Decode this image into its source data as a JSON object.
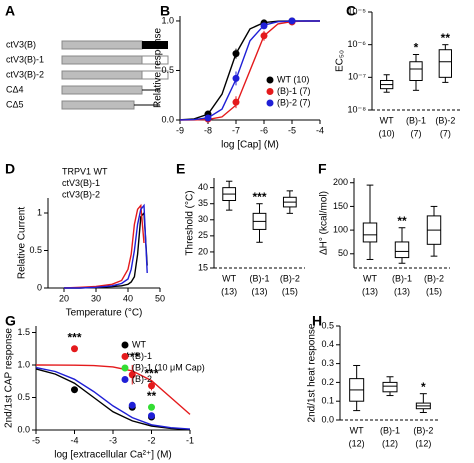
{
  "diagram": {
    "panel": "A",
    "constructs": [
      {
        "label": "ctV3(B)",
        "color": "#000000"
      },
      {
        "label": "ctV3(B)-1",
        "color": "#e41a1c"
      },
      {
        "label": "ctV3(B)-2",
        "color": "#1f1fd6"
      },
      {
        "label": "CΔ4",
        "color": "#000000"
      },
      {
        "label": "CΔ5",
        "color": "#000000"
      }
    ]
  },
  "chart_data": [
    {
      "type": "dose",
      "panel": "B",
      "xlabel": "log [Cap] (M)",
      "ylabel": "Relative response",
      "xlim": [
        -9,
        -4
      ],
      "xticks": [
        -9,
        -8,
        -7,
        -6,
        -5,
        -4
      ],
      "ylim": [
        0,
        1.05
      ],
      "yticks": [
        {
          "value": 0,
          "label": "0.0"
        },
        0.5,
        {
          "value": 1,
          "label": "1.0"
        }
      ],
      "legend": "lower-right",
      "legend_markers": true,
      "x": [
        -8,
        -7,
        -6,
        -5
      ],
      "fit_x": [
        -9,
        -8.5,
        -8,
        -7.5,
        -7,
        -6.5,
        -6,
        -5.5,
        -5,
        -4.5,
        -4
      ],
      "series": [
        {
          "name": "WT (10)",
          "color": "#000000",
          "values": [
            0.06,
            0.67,
            0.98,
            1.0
          ],
          "errors": [
            0.02,
            0.05,
            0.01,
            0.01
          ],
          "fit_values": [
            0.002,
            0.011,
            0.059,
            0.26,
            0.67,
            0.92,
            0.984,
            0.997,
            1.0,
            1.0,
            1.0
          ]
        },
        {
          "name": "(B)-1 (7)",
          "color": "#e41a1c",
          "values": [
            0.01,
            0.18,
            0.85,
            0.99
          ],
          "errors": [
            0.01,
            0.06,
            0.05,
            0.01
          ],
          "fit_values": [
            0.0,
            0.001,
            0.006,
            0.031,
            0.15,
            0.5,
            0.85,
            0.97,
            0.994,
            0.999,
            1.0
          ]
        },
        {
          "name": "(B)-2 (7)",
          "color": "#1f1fd6",
          "values": [
            0.02,
            0.42,
            0.95,
            1.0
          ],
          "errors": [
            0.01,
            0.07,
            0.03,
            0.01
          ],
          "fit_values": [
            0.001,
            0.004,
            0.022,
            0.11,
            0.41,
            0.8,
            0.957,
            0.992,
            0.999,
            1.0,
            1.0
          ]
        }
      ]
    },
    {
      "type": "box",
      "panel": "C",
      "ylabel": "EC₅₀",
      "log_y": true,
      "ylim": [
        1e-08,
        1e-05
      ],
      "yticks": [
        {
          "value": 1e-08,
          "label": "10⁻⁸"
        },
        {
          "value": 1e-07,
          "label": "10⁻⁷"
        },
        {
          "value": 1e-06,
          "label": "10⁻⁶"
        },
        {
          "value": 1e-05,
          "label": "10⁻⁵"
        }
      ],
      "categories": [
        "WT",
        "(B)-1",
        "(B)-2"
      ],
      "sample_sizes": [
        "(10)",
        "(7)",
        "(7)"
      ],
      "boxes": [
        {
          "min": 3.5e-08,
          "q1": 4.5e-08,
          "median": 6e-08,
          "q3": 8e-08,
          "max": 1.2e-07
        },
        {
          "min": 4e-08,
          "q1": 8e-08,
          "median": 1.8e-07,
          "q3": 3e-07,
          "max": 5e-07
        },
        {
          "min": 7e-08,
          "q1": 1e-07,
          "median": 3e-07,
          "q3": 7e-07,
          "max": 1e-06
        }
      ],
      "annotations": [
        null,
        "*",
        "**"
      ]
    },
    {
      "type": "line",
      "panel": "D",
      "xlabel": "Temperature (°C)",
      "ylabel": "Relative Current",
      "xlim": [
        15,
        50
      ],
      "xticks": [
        20,
        30,
        40,
        50
      ],
      "ylim": [
        0,
        1.2
      ],
      "yticks": [
        0,
        0.5,
        1
      ],
      "legend": "upper-left",
      "legend_markers": false,
      "x": [
        20,
        25,
        30,
        35,
        38,
        40,
        41,
        42,
        43,
        44,
        45,
        46,
        47
      ],
      "series": [
        {
          "name": "TRPV1 WT",
          "color": "#000000",
          "values": [
            0,
            0,
            0.01,
            0.02,
            0.03,
            0.05,
            0.08,
            0.15,
            0.45,
            0.95,
            1.0,
            0.3,
            null
          ]
        },
        {
          "name": "ctV3(B)-1",
          "color": "#e41a1c",
          "values": [
            0,
            0.01,
            0.02,
            0.05,
            0.1,
            0.25,
            0.45,
            0.85,
            1.05,
            1.1,
            0.6,
            null,
            null
          ]
        },
        {
          "name": "ctV3(B)-2",
          "color": "#1f1fd6",
          "values": [
            0,
            0,
            0.01,
            0.03,
            0.06,
            0.12,
            0.25,
            0.5,
            0.85,
            1.05,
            1.1,
            0.2,
            null
          ]
        }
      ]
    },
    {
      "type": "box",
      "panel": "E",
      "ylabel": "Threshold (°C)",
      "ylim": [
        15,
        43
      ],
      "yticks": [
        15,
        20,
        25,
        30,
        35,
        40
      ],
      "categories": [
        "WT",
        "(B)-1",
        "(B)-2"
      ],
      "sample_sizes": [
        "(13)",
        "(13)",
        "(15)"
      ],
      "boxes": [
        {
          "min": 33,
          "q1": 36,
          "median": 38,
          "q3": 40,
          "max": 42
        },
        {
          "min": 23,
          "q1": 27,
          "median": 29.5,
          "q3": 32,
          "max": 35
        },
        {
          "min": 32,
          "q1": 34,
          "median": 35.5,
          "q3": 37,
          "max": 39
        }
      ],
      "annotations": [
        null,
        "***",
        null
      ]
    },
    {
      "type": "box",
      "panel": "F",
      "ylabel": "ΔH° (kcal/mol)",
      "ylim": [
        20,
        210
      ],
      "yticks": [
        50,
        100,
        150,
        200
      ],
      "categories": [
        "WT",
        "(B)-1",
        "(B)-2"
      ],
      "sample_sizes": [
        "(13)",
        "(13)",
        "(15)"
      ],
      "boxes": [
        {
          "min": 38,
          "q1": 75,
          "median": 90,
          "q3": 115,
          "max": 195
        },
        {
          "min": 30,
          "q1": 42,
          "median": 55,
          "q3": 75,
          "max": 105
        },
        {
          "min": 45,
          "q1": 70,
          "median": 100,
          "q3": 130,
          "max": 150
        }
      ],
      "annotations": [
        null,
        "**",
        null
      ]
    },
    {
      "type": "dose",
      "panel": "G",
      "xlabel": "log [extracellular Ca²⁺] (M)",
      "ylabel": "2nd/1st CAP response",
      "xlim": [
        -5,
        -1
      ],
      "xticks": [
        -5,
        -4,
        -3,
        -2,
        -1
      ],
      "ylim": [
        0,
        1.6
      ],
      "yticks": [
        {
          "value": 0,
          "label": "0.0"
        },
        0.5,
        {
          "value": 1,
          "label": "1.0"
        },
        1.5
      ],
      "legend": "upper-right",
      "legend_markers": true,
      "fit_x": [
        -5,
        -4.5,
        -4,
        -3.5,
        -3,
        -2.5,
        -2,
        -1.5,
        -1
      ],
      "series": [
        {
          "name": "WT",
          "color": "#000000",
          "x": [
            -4,
            -2.5,
            -2
          ],
          "values": [
            0.62,
            0.35,
            0.2
          ],
          "errors": [
            0.05,
            0.05,
            0.03
          ],
          "fit_values": [
            0.94,
            0.86,
            0.72,
            0.5,
            0.28,
            0.14,
            0.06,
            0.025,
            0.01
          ]
        },
        {
          "name": "(B)-1",
          "color": "#e41a1c",
          "x": [
            -4,
            -2.5,
            -2
          ],
          "values": [
            1.25,
            0.85,
            0.68
          ],
          "errors": [
            0.05,
            0.15,
            0.07
          ],
          "annotations": [
            "***",
            "***",
            "***"
          ],
          "fit_values": [
            1.0,
            0.999,
            0.997,
            0.99,
            0.97,
            0.91,
            0.76,
            0.5,
            0.24
          ]
        },
        {
          "name": "(B)-1 (10 μM Cap)",
          "color": "#33dd33",
          "x": [
            -2
          ],
          "values": [
            0.35
          ],
          "errors": [
            0.05
          ],
          "annotations": [
            "**"
          ]
        },
        {
          "name": "(B)-2",
          "color": "#1f1fd6",
          "x": [
            -2.5,
            -2
          ],
          "values": [
            0.38,
            0.22
          ],
          "errors": [
            0.05,
            0.04
          ],
          "fit_values": [
            0.96,
            0.9,
            0.78,
            0.59,
            0.37,
            0.19,
            0.08,
            0.036,
            0.014
          ]
        }
      ]
    },
    {
      "type": "box",
      "panel": "H",
      "ylabel": "2nd/1st heat response",
      "ylim": [
        0,
        0.5
      ],
      "yticks": [
        {
          "value": 0,
          "label": "0.0"
        },
        0.1,
        0.2,
        0.3,
        0.4,
        0.5
      ],
      "categories": [
        "WT",
        "(B)-1",
        "(B)-2"
      ],
      "sample_sizes": [
        "(12)",
        "(12)",
        "(12)"
      ],
      "boxes": [
        {
          "min": 0.05,
          "q1": 0.1,
          "median": 0.16,
          "q3": 0.22,
          "max": 0.29
        },
        {
          "min": 0.13,
          "q1": 0.15,
          "median": 0.18,
          "q3": 0.2,
          "max": 0.23
        },
        {
          "min": 0.04,
          "q1": 0.06,
          "median": 0.075,
          "q3": 0.09,
          "max": 0.14
        }
      ],
      "annotations": [
        null,
        null,
        "*"
      ]
    }
  ]
}
